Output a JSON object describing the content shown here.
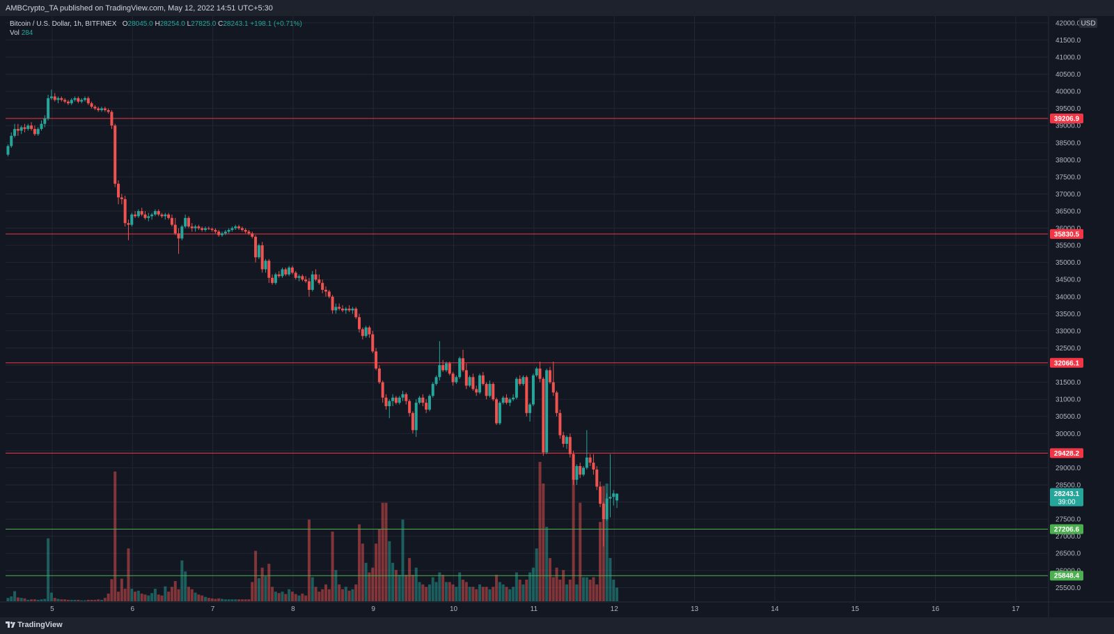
{
  "header": {
    "publisher_line": "AMBCrypto_TA published on TradingView.com, May 12, 2022 14:51 UTC+5:30"
  },
  "legend": {
    "symbol": "Bitcoin / U.S. Dollar, 1h, BITFINEX",
    "o_label": "O",
    "o": "28045.0",
    "h_label": "H",
    "h": "28254.0",
    "l_label": "L",
    "l": "27825.0",
    "c_label": "C",
    "c": "28243.1",
    "change": "+198.1 (+0.71%)",
    "vol_label": "Vol",
    "vol": "284"
  },
  "footer": {
    "logo_text": "TradingView"
  },
  "colors": {
    "background": "#131722",
    "up": "#26a69a",
    "down": "#ef5350",
    "resistance": "#f23645",
    "support": "#4caf50",
    "grid": "#232733",
    "axis_text": "#b2b5be"
  },
  "chart_data": {
    "type": "candlestick",
    "currency_label": "USD",
    "ylim": [
      25100,
      42200
    ],
    "y_ticks": [
      "25500.0",
      "26000.0",
      "26500.0",
      "27000.0",
      "27500.0",
      "28000.0",
      "28500.0",
      "29000.0",
      "29500.0",
      "30000.0",
      "30500.0",
      "31000.0",
      "31500.0",
      "32000.0",
      "32500.0",
      "33000.0",
      "33500.0",
      "34000.0",
      "34500.0",
      "35000.0",
      "35500.0",
      "36000.0",
      "36500.0",
      "37000.0",
      "37500.0",
      "38000.0",
      "38500.0",
      "39000.0",
      "39500.0",
      "40000.0",
      "40500.0",
      "41000.0",
      "41500.0",
      "42000.0"
    ],
    "x_ticks": [
      "5",
      "6",
      "7",
      "8",
      "9",
      "10",
      "11",
      "12",
      "13",
      "14",
      "15",
      "16",
      "17"
    ],
    "x_tick_days": [
      5,
      6,
      7,
      8,
      9,
      10,
      11,
      12,
      13,
      14,
      15,
      16,
      17
    ],
    "xlim_days": [
      4.42,
      17.4
    ],
    "last_price": {
      "value": 28243.1,
      "label": "28243.1",
      "countdown": "39:00"
    },
    "horizontal_levels": [
      {
        "value": 39206.9,
        "label": "39206.9",
        "kind": "resistance"
      },
      {
        "value": 35830.5,
        "label": "35830.5",
        "kind": "resistance"
      },
      {
        "value": 32066.1,
        "label": "32066.1",
        "kind": "resistance"
      },
      {
        "value": 29428.2,
        "label": "29428.2",
        "kind": "resistance"
      },
      {
        "value": 27206.6,
        "label": "27206.6",
        "kind": "support"
      },
      {
        "value": 25848.4,
        "label": "25848.4",
        "kind": "support"
      }
    ],
    "candle_start_day": 4.45,
    "candle_interval_hours": 1,
    "volume_max": 2900,
    "candles": [
      [
        38150,
        38450,
        38100,
        38400,
        70
      ],
      [
        38400,
        38800,
        38350,
        38700,
        100
      ],
      [
        38700,
        39050,
        38650,
        38900,
        210
      ],
      [
        38900,
        39050,
        38700,
        38850,
        80
      ],
      [
        38850,
        39000,
        38750,
        38950,
        70
      ],
      [
        38950,
        39050,
        38800,
        38900,
        60
      ],
      [
        38900,
        39050,
        38850,
        39000,
        30
      ],
      [
        39000,
        39100,
        38850,
        38900,
        40
      ],
      [
        38900,
        39000,
        38700,
        38750,
        40
      ],
      [
        38750,
        38950,
        38700,
        38900,
        30
      ],
      [
        38900,
        39150,
        38850,
        39050,
        40
      ],
      [
        39050,
        39300,
        38950,
        39200,
        50
      ],
      [
        39200,
        39900,
        39150,
        39800,
        1310
      ],
      [
        39800,
        40050,
        39750,
        39850,
        180
      ],
      [
        39850,
        39950,
        39700,
        39750,
        70
      ],
      [
        39750,
        39850,
        39650,
        39800,
        50
      ],
      [
        39800,
        39850,
        39700,
        39750,
        40
      ],
      [
        39750,
        39800,
        39650,
        39700,
        40
      ],
      [
        39700,
        39750,
        39600,
        39650,
        30
      ],
      [
        39650,
        39800,
        39600,
        39750,
        30
      ],
      [
        39750,
        39850,
        39700,
        39800,
        30
      ],
      [
        39800,
        39850,
        39650,
        39700,
        30
      ],
      [
        39700,
        39800,
        39650,
        39750,
        20
      ],
      [
        39750,
        39850,
        39700,
        39800,
        20
      ],
      [
        39800,
        39850,
        39600,
        39650,
        30
      ],
      [
        39650,
        39700,
        39500,
        39550,
        30
      ],
      [
        39550,
        39600,
        39450,
        39500,
        30
      ],
      [
        39500,
        39550,
        39400,
        39450,
        40
      ],
      [
        39450,
        39550,
        39400,
        39500,
        30
      ],
      [
        39500,
        39550,
        39400,
        39450,
        70
      ],
      [
        39450,
        39500,
        39350,
        39400,
        160
      ],
      [
        39400,
        39450,
        38900,
        39000,
        460
      ],
      [
        39000,
        39050,
        37200,
        37300,
        2700
      ],
      [
        37300,
        37400,
        36700,
        36900,
        200
      ],
      [
        36900,
        37000,
        36700,
        36850,
        470
      ],
      [
        36850,
        36950,
        36050,
        36150,
        260
      ],
      [
        36150,
        36250,
        35650,
        36100,
        1100
      ],
      [
        36100,
        36450,
        36050,
        36400,
        260
      ],
      [
        36400,
        36500,
        36300,
        36350,
        200
      ],
      [
        36350,
        36550,
        36300,
        36500,
        220
      ],
      [
        36500,
        36600,
        36350,
        36400,
        160
      ],
      [
        36400,
        36500,
        36250,
        36300,
        140
      ],
      [
        36300,
        36450,
        36200,
        36350,
        120
      ],
      [
        36350,
        36450,
        36250,
        36400,
        170
      ],
      [
        36400,
        36550,
        36350,
        36500,
        260
      ],
      [
        36500,
        36550,
        36350,
        36400,
        140
      ],
      [
        36400,
        36450,
        36300,
        36350,
        120
      ],
      [
        36350,
        36450,
        36250,
        36400,
        310
      ],
      [
        36400,
        36450,
        36250,
        36300,
        200
      ],
      [
        36300,
        36400,
        36050,
        36100,
        300
      ],
      [
        36100,
        36300,
        35800,
        35850,
        420
      ],
      [
        35850,
        36000,
        35250,
        35700,
        250
      ],
      [
        35700,
        36100,
        35650,
        36050,
        850
      ],
      [
        36050,
        36400,
        36000,
        36300,
        620
      ],
      [
        36300,
        36350,
        36000,
        36050,
        300
      ],
      [
        36050,
        36150,
        35900,
        36000,
        250
      ],
      [
        36000,
        36100,
        35900,
        36050,
        180
      ],
      [
        36050,
        36100,
        35950,
        36000,
        140
      ],
      [
        36000,
        36050,
        35900,
        35950,
        120
      ],
      [
        35950,
        36050,
        35900,
        36000,
        90
      ],
      [
        36000,
        36050,
        35950,
        35980,
        70
      ],
      [
        35980,
        36020,
        35900,
        35950,
        60
      ],
      [
        35950,
        36000,
        35850,
        35900,
        50
      ],
      [
        35900,
        35950,
        35750,
        35800,
        60
      ],
      [
        35800,
        35900,
        35750,
        35850,
        50
      ],
      [
        35850,
        35950,
        35800,
        35900,
        40
      ],
      [
        35900,
        36000,
        35850,
        35950,
        40
      ],
      [
        35950,
        36050,
        35900,
        36000,
        40
      ],
      [
        36000,
        36100,
        35950,
        36050,
        40
      ],
      [
        36050,
        36100,
        35950,
        36000,
        40
      ],
      [
        36000,
        36050,
        35900,
        35950,
        40
      ],
      [
        35950,
        36000,
        35850,
        35900,
        40
      ],
      [
        35900,
        35950,
        35800,
        35850,
        40
      ],
      [
        35850,
        35900,
        35700,
        35750,
        400
      ],
      [
        35750,
        35800,
        35000,
        35150,
        1050
      ],
      [
        35150,
        35550,
        35100,
        35500,
        480
      ],
      [
        35500,
        35600,
        34700,
        34800,
        700
      ],
      [
        34800,
        35100,
        34700,
        35050,
        520
      ],
      [
        35050,
        35100,
        34400,
        34550,
        780
      ],
      [
        34550,
        34650,
        34350,
        34400,
        300
      ],
      [
        34400,
        34700,
        34350,
        34650,
        200
      ],
      [
        34650,
        34750,
        34550,
        34600,
        170
      ],
      [
        34600,
        34850,
        34550,
        34800,
        200
      ],
      [
        34800,
        34850,
        34600,
        34650,
        150
      ],
      [
        34650,
        34900,
        34600,
        34850,
        250
      ],
      [
        34850,
        34900,
        34650,
        34700,
        200
      ],
      [
        34700,
        34750,
        34500,
        34550,
        150
      ],
      [
        34550,
        34650,
        34450,
        34600,
        120
      ],
      [
        34600,
        34650,
        34450,
        34500,
        160
      ],
      [
        34500,
        34600,
        34400,
        34450,
        120
      ],
      [
        34450,
        34550,
        34000,
        34200,
        1700
      ],
      [
        34200,
        34750,
        34150,
        34650,
        500
      ],
      [
        34650,
        34800,
        34450,
        34500,
        300
      ],
      [
        34500,
        34650,
        34350,
        34400,
        200
      ],
      [
        34400,
        34500,
        34100,
        34200,
        250
      ],
      [
        34200,
        34300,
        34000,
        34150,
        350
      ],
      [
        34150,
        34200,
        33950,
        34000,
        250
      ],
      [
        34000,
        34050,
        33500,
        33600,
        1450
      ],
      [
        33600,
        33800,
        33500,
        33700,
        650
      ],
      [
        33700,
        33800,
        33600,
        33650,
        350
      ],
      [
        33650,
        33750,
        33550,
        33600,
        250
      ],
      [
        33600,
        33700,
        33500,
        33650,
        300
      ],
      [
        33650,
        33750,
        33550,
        33600,
        220
      ],
      [
        33600,
        33700,
        33500,
        33650,
        250
      ],
      [
        33650,
        33700,
        33350,
        33400,
        350
      ],
      [
        33400,
        33500,
        32950,
        33050,
        1600
      ],
      [
        33050,
        33100,
        32750,
        32850,
        1200
      ],
      [
        32850,
        33150,
        32800,
        33100,
        800
      ],
      [
        33100,
        33150,
        32800,
        32900,
        600
      ],
      [
        32900,
        33000,
        32350,
        32400,
        700
      ],
      [
        32400,
        32500,
        31850,
        31900,
        1200
      ],
      [
        31900,
        32000,
        31450,
        31500,
        1500
      ],
      [
        31500,
        31550,
        30900,
        31050,
        2050
      ],
      [
        31050,
        31150,
        30700,
        30800,
        2050
      ],
      [
        30800,
        31000,
        30450,
        30950,
        1250
      ],
      [
        30950,
        31150,
        30800,
        31050,
        800
      ],
      [
        31050,
        31100,
        30850,
        30900,
        650
      ],
      [
        30900,
        31100,
        30850,
        31050,
        550
      ],
      [
        31050,
        31250,
        30950,
        31150,
        1700
      ],
      [
        31150,
        31200,
        30850,
        30950,
        550
      ],
      [
        30950,
        31000,
        30500,
        30600,
        900
      ],
      [
        30600,
        30650,
        30000,
        30100,
        550
      ],
      [
        30100,
        31000,
        29900,
        30900,
        700
      ],
      [
        30900,
        31100,
        30850,
        31050,
        400
      ],
      [
        31050,
        31150,
        30800,
        30900,
        350
      ],
      [
        30900,
        31000,
        30600,
        30700,
        300
      ],
      [
        30700,
        31150,
        30650,
        31100,
        350
      ],
      [
        31100,
        31500,
        31050,
        31450,
        500
      ],
      [
        31450,
        31700,
        31400,
        31650,
        400
      ],
      [
        31650,
        32700,
        31550,
        32000,
        600
      ],
      [
        32000,
        32150,
        31800,
        31850,
        550
      ],
      [
        31850,
        32100,
        31800,
        32050,
        400
      ],
      [
        32050,
        32100,
        31700,
        31750,
        400
      ],
      [
        31750,
        31800,
        31400,
        31500,
        350
      ],
      [
        31500,
        31700,
        31450,
        31650,
        300
      ],
      [
        31650,
        32250,
        31600,
        32200,
        600
      ],
      [
        32200,
        32450,
        31800,
        31850,
        450
      ],
      [
        31850,
        32050,
        31300,
        31400,
        400
      ],
      [
        31400,
        31700,
        31350,
        31650,
        300
      ],
      [
        31650,
        31750,
        31250,
        31300,
        300
      ],
      [
        31300,
        31400,
        31100,
        31200,
        250
      ],
      [
        31200,
        31750,
        31150,
        31700,
        350
      ],
      [
        31700,
        31800,
        31400,
        31450,
        300
      ],
      [
        31450,
        31500,
        31000,
        31100,
        300
      ],
      [
        31100,
        31550,
        31050,
        31450,
        250
      ],
      [
        31450,
        31500,
        30950,
        31000,
        300
      ],
      [
        31000,
        31050,
        30250,
        30300,
        550
      ],
      [
        30300,
        30950,
        30250,
        30900,
        400
      ],
      [
        30900,
        31100,
        30850,
        31050,
        350
      ],
      [
        31050,
        31150,
        30850,
        30900,
        300
      ],
      [
        30900,
        31050,
        30800,
        31000,
        250
      ],
      [
        31000,
        31150,
        30950,
        31050,
        300
      ],
      [
        31050,
        31650,
        31000,
        31600,
        600
      ],
      [
        31600,
        31700,
        31400,
        31450,
        450
      ],
      [
        31450,
        31700,
        31400,
        31650,
        350
      ],
      [
        31650,
        31700,
        30500,
        30600,
        450
      ],
      [
        30600,
        30900,
        30350,
        30850,
        600
      ],
      [
        30850,
        31750,
        30800,
        31700,
        700
      ],
      [
        31700,
        31950,
        31650,
        31900,
        1100
      ],
      [
        31900,
        32100,
        31500,
        31600,
        2900
      ],
      [
        31600,
        31650,
        29350,
        29450,
        2450
      ],
      [
        29450,
        31900,
        29400,
        31850,
        1550
      ],
      [
        31850,
        31950,
        31450,
        31500,
        900
      ],
      [
        31500,
        32100,
        31100,
        31200,
        500
      ],
      [
        31200,
        31250,
        30500,
        30600,
        700
      ],
      [
        30600,
        30700,
        29850,
        29950,
        450
      ],
      [
        29950,
        30050,
        29600,
        29700,
        650
      ],
      [
        29700,
        29950,
        29550,
        29900,
        350
      ],
      [
        29900,
        30000,
        29300,
        29400,
        450
      ],
      [
        29400,
        29500,
        28500,
        28650,
        2600
      ],
      [
        28650,
        29100,
        28500,
        29050,
        350
      ],
      [
        29050,
        29150,
        28700,
        28800,
        2050
      ],
      [
        28800,
        29050,
        28750,
        29000,
        500
      ],
      [
        29000,
        30100,
        28950,
        29300,
        500
      ],
      [
        29300,
        29400,
        29050,
        29150,
        450
      ],
      [
        29150,
        29400,
        28800,
        28950,
        500
      ],
      [
        28950,
        29050,
        28350,
        28450,
        350
      ],
      [
        28450,
        28600,
        27850,
        27950,
        1650
      ],
      [
        27950,
        28000,
        26700,
        27500,
        2400
      ],
      [
        27500,
        28250,
        27450,
        28100,
        2450
      ],
      [
        28100,
        29400,
        27550,
        28150,
        900
      ],
      [
        28150,
        28350,
        27900,
        28250,
        450
      ],
      [
        28045,
        28254,
        27825,
        28243.1,
        284
      ]
    ]
  }
}
